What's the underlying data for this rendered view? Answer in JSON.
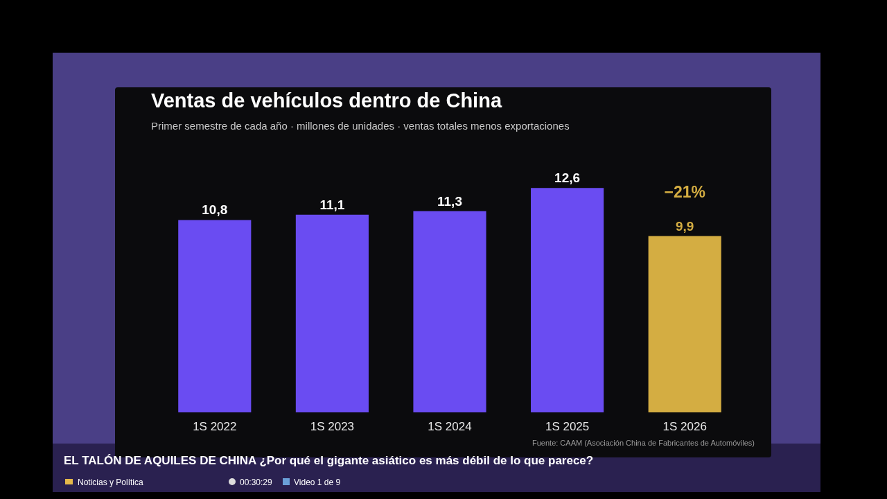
{
  "chart_data": {
    "type": "bar",
    "title": "Ventas de vehículos dentro de China",
    "subtitle": "Primer semestre de cada año · millones de unidades · ventas totales menos exportaciones",
    "categories": [
      "1S 2022",
      "1S 2023",
      "1S 2024",
      "1S 2025",
      "1S 2026"
    ],
    "values": [
      10.8,
      11.1,
      11.3,
      12.6,
      9.9
    ],
    "colors": [
      "#6a4cf2",
      "#6a4cf2",
      "#6a4cf2",
      "#6a4cf2",
      "#d4ad42"
    ],
    "value_labels": [
      "10,8",
      "11,1",
      "11,3",
      "12,6",
      "9,9"
    ],
    "annotations": [
      {
        "text": "−21%",
        "x": "1S 2026",
        "y": 9.9
      },
      "Fuente: CAAM (Asociación China de Fabricantes de Automóviles)",
      "EL TALÓN DE AQUILES DE CHINA ¿Por qué el gigante asiático es más débil de lo que parece?",
      "Noticias y Política",
      "00:30:29",
      "Video 1 de 9"
    ]
  }
}
